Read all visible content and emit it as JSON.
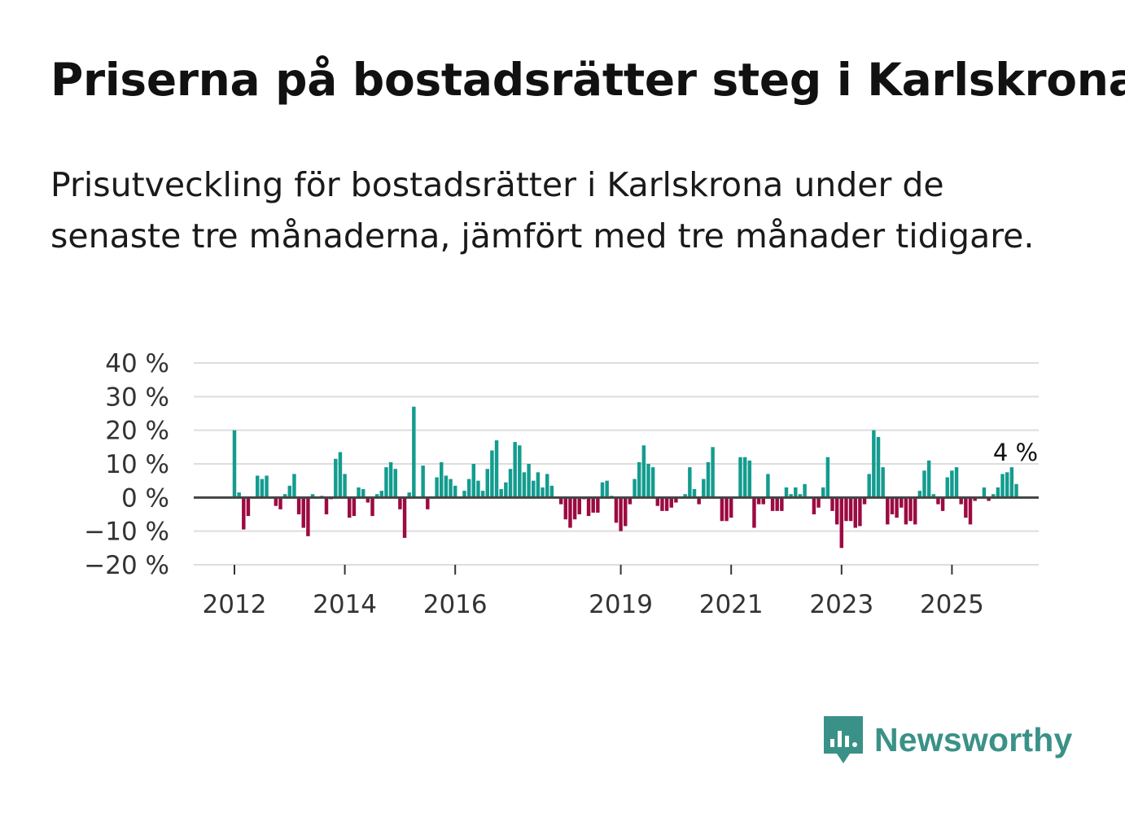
{
  "title": "Priserna på bostadsrätter steg i Karlskrona",
  "subtitle": "Prisutveckling för bostadsrätter i Karlskrona under de senaste tre månaderna, jämfört med tre månader tidigare.",
  "brand": {
    "name": "Newsworthy"
  },
  "colors": {
    "positive": "#139c8f",
    "negative": "#9c0a41",
    "grid": "#dddddd",
    "zero": "#444444"
  },
  "chart_data": {
    "type": "bar",
    "title": "Priserna på bostadsrätter steg i Karlskrona",
    "xlabel": "",
    "ylabel": "",
    "ylim": [
      -20,
      40
    ],
    "y_ticks": [
      40,
      30,
      20,
      10,
      0,
      -10,
      -20
    ],
    "y_tick_labels": [
      "40 %",
      "30 %",
      "20 %",
      "10 %",
      "0 %",
      "−10 %",
      "−20 %"
    ],
    "x_start": "2012-01",
    "x_tick_labels": [
      "2012",
      "2014",
      "2016",
      "2019",
      "2021",
      "2023",
      "2025"
    ],
    "x_tick_years": [
      2012,
      2014,
      2016,
      2019,
      2021,
      2023,
      2025
    ],
    "unit": "%",
    "last_value_label": "4 %",
    "series": [
      {
        "name": "Prisutveckling",
        "values": [
          20,
          1.5,
          -9.5,
          -5.5,
          0,
          6.5,
          5.5,
          6.5,
          0,
          -2.5,
          -3.5,
          1,
          3.5,
          7,
          -5,
          -9,
          -11.5,
          1,
          0,
          0.5,
          -5,
          -0.5,
          11.5,
          13.5,
          7,
          -6,
          -5.5,
          3,
          2.5,
          -1.5,
          -5.5,
          1,
          2,
          9,
          10.5,
          8.5,
          -3.5,
          -12,
          1.5,
          27,
          0,
          9.5,
          -3.5,
          0,
          6,
          10.5,
          6.5,
          5.5,
          3.5,
          0,
          2,
          5.5,
          10,
          5,
          2,
          8.5,
          14,
          17,
          2.5,
          4.5,
          8.5,
          16.5,
          15.5,
          7.5,
          10,
          5,
          7.5,
          3,
          7,
          3.5,
          0,
          -2,
          -6.5,
          -9,
          -6.5,
          -5,
          -0.5,
          -5.5,
          -4.5,
          -4.5,
          4.5,
          5,
          0.5,
          -7.5,
          -10,
          -8.5,
          -2,
          5.5,
          10.5,
          15.5,
          10,
          9,
          -2.5,
          -4,
          -4,
          -3,
          -1.5,
          0,
          1,
          9,
          2.5,
          -2,
          5.5,
          10.5,
          15,
          0,
          -7,
          -7,
          -6,
          0,
          12,
          12,
          11,
          -9,
          -2,
          -2,
          7,
          -4,
          -4,
          -4,
          3,
          1,
          3,
          1,
          4,
          0,
          -5,
          -3,
          3,
          12,
          -4,
          -8,
          -15,
          -7,
          -7,
          -9,
          -8.5,
          -2,
          7,
          20,
          18,
          9,
          -8,
          -5,
          -6,
          -3,
          -8,
          -7,
          -8,
          2,
          8,
          11,
          1,
          -2,
          -4,
          6,
          8,
          9,
          -2,
          -6,
          -8,
          -1,
          0,
          3,
          -1,
          1,
          3,
          7,
          7.5,
          9,
          4
        ]
      }
    ]
  }
}
